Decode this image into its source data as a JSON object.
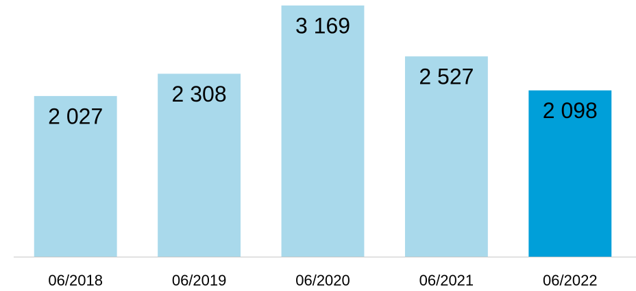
{
  "chart_data": {
    "type": "bar",
    "categories": [
      "06/2018",
      "06/2019",
      "06/2020",
      "06/2021",
      "06/2022"
    ],
    "values": [
      2027,
      2308,
      3169,
      2527,
      2098
    ],
    "value_labels": [
      "2 027",
      "2 308",
      "3 169",
      "2 527",
      "2 098"
    ],
    "colors": [
      "#a9d9eb",
      "#a9d9eb",
      "#a9d9eb",
      "#a9d9eb",
      "#009fd9"
    ],
    "grid": false
  }
}
